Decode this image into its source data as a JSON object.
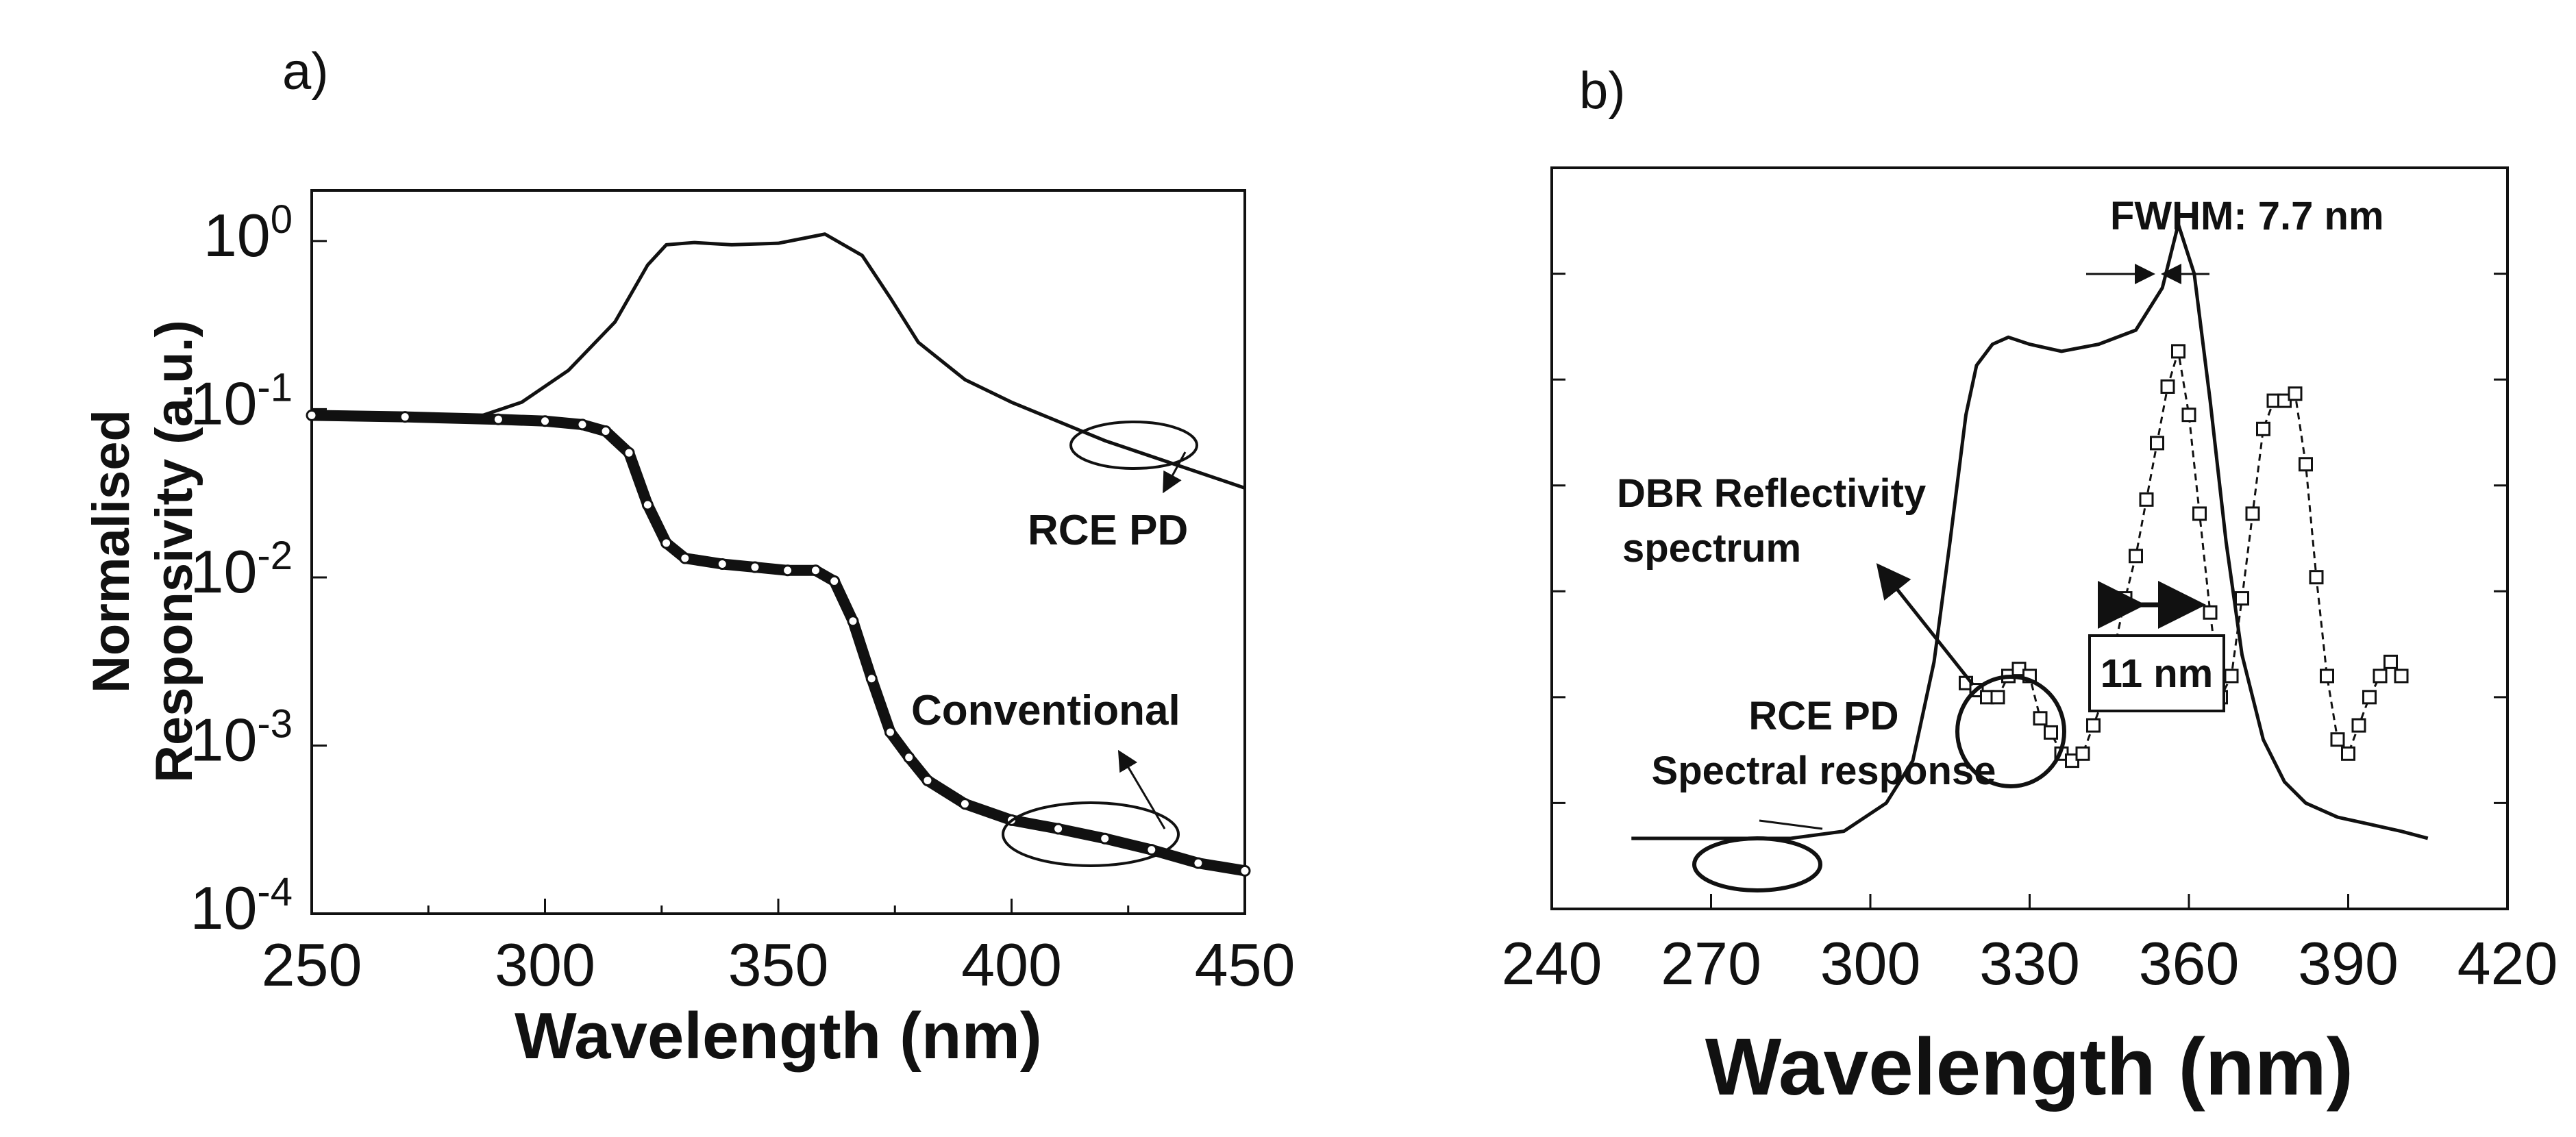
{
  "panels": {
    "a_label": "a)",
    "b_label": "b)"
  },
  "colors": {
    "line": "#111111",
    "marker_fill": "#ffffff"
  },
  "chart_data": [
    {
      "type": "line",
      "panel": "a)",
      "xlabel": "Wavelength (nm)",
      "ylabel_lines": [
        "Normalised",
        "Responsivity (a.u.)"
      ],
      "xlim": [
        250,
        450
      ],
      "ylim": [
        0.0001,
        2
      ],
      "yscale": "log",
      "x_ticks": [
        250,
        300,
        350,
        400,
        450
      ],
      "x_tick_labels": [
        "250",
        "300",
        "350",
        "400",
        "450"
      ],
      "y_ticks": [
        {
          "base": "10",
          "exp": "0",
          "value": 1
        },
        {
          "base": "10",
          "exp": "-1",
          "value": 0.1
        },
        {
          "base": "10",
          "exp": "-2",
          "value": 0.01
        },
        {
          "base": "10",
          "exp": "-3",
          "value": 0.001
        },
        {
          "base": "10",
          "exp": "-4",
          "value": 0.0001
        }
      ],
      "grid": false,
      "series": [
        {
          "name": "RCE PD",
          "style": "line",
          "x": [
            283,
            295,
            305,
            315,
            322,
            326,
            332,
            340,
            350,
            360,
            368,
            374,
            380,
            390,
            400,
            420,
            450
          ],
          "y": [
            0.085,
            0.11,
            0.17,
            0.33,
            0.72,
            0.95,
            0.98,
            0.95,
            0.97,
            1.1,
            0.82,
            0.46,
            0.25,
            0.15,
            0.11,
            0.065,
            0.034
          ]
        },
        {
          "name": "Conventional",
          "style": "markers",
          "x": [
            250,
            270,
            290,
            300,
            308,
            313,
            318,
            322,
            326,
            330,
            338,
            345,
            352,
            358,
            362,
            366,
            370,
            374,
            378,
            382,
            390,
            400,
            410,
            420,
            430,
            440,
            450
          ],
          "y": [
            0.092,
            0.09,
            0.087,
            0.085,
            0.081,
            0.074,
            0.055,
            0.027,
            0.016,
            0.013,
            0.012,
            0.0115,
            0.011,
            0.011,
            0.0095,
            0.0055,
            0.0025,
            0.0012,
            0.00085,
            0.00062,
            0.00045,
            0.00036,
            0.00032,
            0.00028,
            0.00024,
            0.0002,
            0.00018
          ]
        }
      ],
      "annotations": [
        "RCE PD",
        "Conventional"
      ]
    },
    {
      "type": "line",
      "panel": "b)",
      "xlabel": "Wavelength (nm)",
      "ylabel": "",
      "xlim": [
        240,
        420
      ],
      "ylim": [
        0,
        1.05
      ],
      "x_ticks": [
        240,
        270,
        300,
        330,
        360,
        390,
        420
      ],
      "x_tick_labels": [
        "240",
        "270",
        "300",
        "330",
        "360",
        "390",
        "420"
      ],
      "grid": false,
      "series": [
        {
          "name": "RCE PD Spectral response",
          "style": "line",
          "x": [
            255,
            270,
            285,
            295,
            303,
            308,
            312,
            315,
            318,
            320,
            323,
            326,
            330,
            336,
            343,
            350,
            355,
            358,
            361,
            364,
            367,
            370,
            374,
            378,
            382,
            388,
            394,
            400,
            405
          ],
          "y": [
            0.1,
            0.1,
            0.1,
            0.11,
            0.15,
            0.21,
            0.35,
            0.52,
            0.7,
            0.77,
            0.8,
            0.81,
            0.8,
            0.79,
            0.8,
            0.82,
            0.88,
            0.97,
            0.9,
            0.72,
            0.52,
            0.36,
            0.24,
            0.18,
            0.15,
            0.13,
            0.12,
            0.11,
            0.1
          ]
        },
        {
          "name": "DBR Reflectivity spectrum",
          "style": "markers-line",
          "x": [
            318,
            320,
            322,
            324,
            326,
            328,
            330,
            332,
            334,
            336,
            338,
            340,
            342,
            344,
            346,
            348,
            350,
            352,
            354,
            356,
            358,
            360,
            362,
            364,
            366,
            368,
            370,
            372,
            374,
            376,
            378,
            380,
            382,
            384,
            386,
            388,
            390,
            392,
            394,
            396,
            398,
            400
          ],
          "y": [
            0.32,
            0.31,
            0.3,
            0.3,
            0.33,
            0.34,
            0.33,
            0.27,
            0.25,
            0.22,
            0.21,
            0.22,
            0.26,
            0.3,
            0.37,
            0.44,
            0.5,
            0.58,
            0.66,
            0.74,
            0.79,
            0.7,
            0.56,
            0.42,
            0.3,
            0.33,
            0.44,
            0.56,
            0.68,
            0.72,
            0.72,
            0.73,
            0.63,
            0.47,
            0.33,
            0.24,
            0.22,
            0.26,
            0.3,
            0.33,
            0.35,
            0.33
          ]
        }
      ],
      "annotations": [
        "FWHM: 7.7 nm",
        "DBR Reflectivity",
        "spectrum",
        "RCE PD",
        "Spectral response",
        "11 nm"
      ]
    }
  ],
  "annotations": {
    "a_rce": "RCE PD",
    "a_conv": "Conventional",
    "b_fwhm": "FWHM: 7.7 nm",
    "b_dbr_line1": "DBR Reflectivity",
    "b_dbr_line2": "spectrum",
    "b_rce_line1": "RCE PD",
    "b_rce_line2": "Spectral response",
    "b_11nm": "11 nm"
  }
}
